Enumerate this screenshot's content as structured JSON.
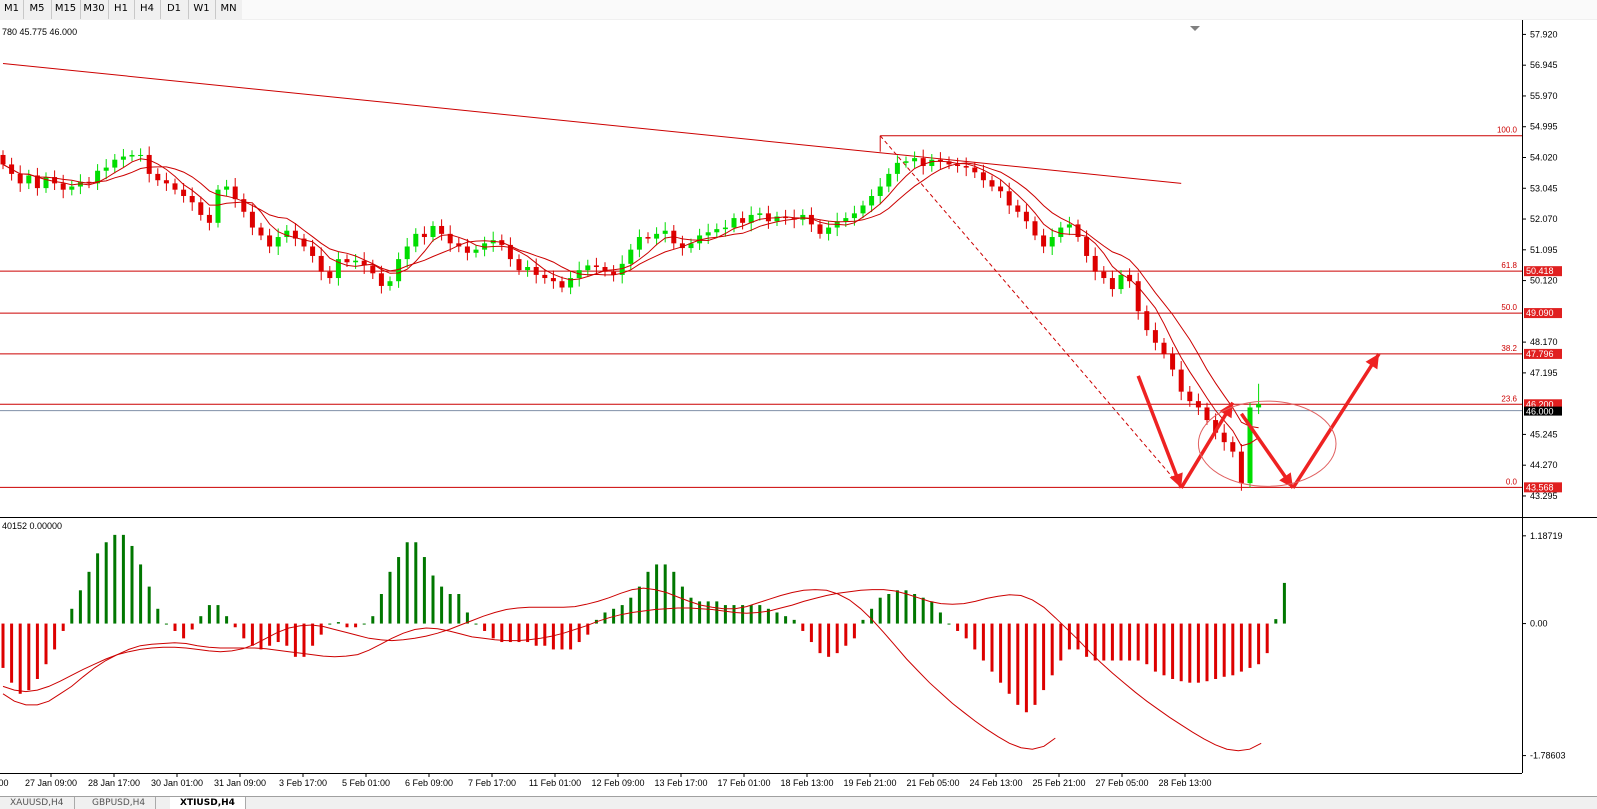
{
  "timeframes": [
    {
      "label": "M1",
      "active": false
    },
    {
      "label": "M5",
      "active": false
    },
    {
      "label": "M15",
      "active": false
    },
    {
      "label": "M30",
      "active": false
    },
    {
      "label": "H1",
      "active": false
    },
    {
      "label": "H4",
      "active": false
    },
    {
      "label": "D1",
      "active": false
    },
    {
      "label": "W1",
      "active": false
    },
    {
      "label": "MN",
      "active": false
    }
  ],
  "symbol_tabs": [
    {
      "label": "XAUUSD,H4",
      "active": false
    },
    {
      "label": "GBPUSD,H4",
      "active": false
    },
    {
      "label": "XTIUSD,H4",
      "active": true
    }
  ],
  "colors": {
    "bull": "#00dd00",
    "bear": "#dd0000",
    "line": "#cc0000",
    "hist_up": "#007700",
    "hist_down": "#dd0000",
    "arrow": "#ee2222"
  },
  "chart_data": [
    {
      "type": "candlestick",
      "title": "",
      "info_text": "780 45.775 46.000",
      "price_axis": {
        "range": [
          42.85,
          58.25
        ],
        "ticks": [
          "57.920",
          "56.945",
          "55.970",
          "54.995",
          "54.020",
          "53.045",
          "52.070",
          "51.095",
          "50.120",
          "48.170",
          "47.195",
          "45.245",
          "44.270",
          "43.295"
        ]
      },
      "time_axis_labels": [
        "27 Jan 09:00",
        "28 Jan 17:00",
        "30 Jan 01:00",
        "31 Jan 09:00",
        "3 Feb 17:00",
        "5 Feb 01:00",
        "6 Feb 09:00",
        "7 Feb 17:00",
        "11 Feb 01:00",
        "12 Feb 09:00",
        "13 Feb 17:00",
        "17 Feb 01:00",
        "18 Feb 13:00",
        "19 Feb 21:00",
        "21 Feb 05:00",
        "24 Feb 13:00",
        "25 Feb 21:00",
        "27 Feb 05:00",
        "28 Feb 13:00"
      ],
      "time_axis_cut_label": ":00",
      "fibonacci": [
        {
          "level": "100.0",
          "price": 54.71,
          "label": ""
        },
        {
          "level": "61.8",
          "price": 50.418,
          "label": "50.418"
        },
        {
          "level": "50.0",
          "price": 49.09,
          "label": "49.090"
        },
        {
          "level": "38.2",
          "price": 47.796,
          "label": "47.796"
        },
        {
          "level": "23.6",
          "price": 46.2,
          "label": "46.200"
        },
        {
          "level": "0.0",
          "price": 43.568,
          "label": "43.568"
        }
      ],
      "current_price": {
        "price": 46.0,
        "label": "46.000"
      },
      "trendline": [
        [
          0,
          57.0
        ],
        [
          137,
          53.2
        ]
      ],
      "projection_arrows": [
        [
          [
            132,
            47.1
          ],
          [
            137,
            43.55
          ]
        ],
        [
          [
            137,
            43.55
          ],
          [
            143,
            46.25
          ]
        ],
        [
          [
            144,
            45.9
          ],
          [
            150,
            43.55
          ]
        ],
        [
          [
            150,
            43.55
          ],
          [
            160,
            47.8
          ]
        ]
      ],
      "projection_ellipse": {
        "center": [
          147,
          44.95
        ],
        "rx_bars": 8,
        "ry_price": 1.35
      },
      "close": [
        53.8,
        53.5,
        53.2,
        53.45,
        53.05,
        53.4,
        53.2,
        53.0,
        53.1,
        53.25,
        53.2,
        53.6,
        53.7,
        53.95,
        54.05,
        54.1,
        54.1,
        53.5,
        53.3,
        53.2,
        53.0,
        52.8,
        52.6,
        52.2,
        51.95,
        53.0,
        53.1,
        52.7,
        52.3,
        51.8,
        51.55,
        51.2,
        51.5,
        51.7,
        51.45,
        51.2,
        50.9,
        50.4,
        50.2,
        50.8,
        50.7,
        50.75,
        50.6,
        50.35,
        49.95,
        50.1,
        50.8,
        51.2,
        51.6,
        51.5,
        51.85,
        51.6,
        51.3,
        51.2,
        51.0,
        51.1,
        51.3,
        51.4,
        51.25,
        50.8,
        50.45,
        50.55,
        50.3,
        50.2,
        50.1,
        49.9,
        50.2,
        50.45,
        50.6,
        50.55,
        50.4,
        50.3,
        50.65,
        51.1,
        51.5,
        51.45,
        51.6,
        51.7,
        51.3,
        51.15,
        51.3,
        51.55,
        51.65,
        51.75,
        51.8,
        52.1,
        51.95,
        52.2,
        52.25,
        52.0,
        52.15,
        52.1,
        52.05,
        52.2,
        51.9,
        51.6,
        51.8,
        52.0,
        52.1,
        52.25,
        52.5,
        52.8,
        53.1,
        53.5,
        53.85,
        53.9,
        54.0,
        53.75,
        53.95,
        53.9,
        53.8,
        53.75,
        53.7,
        53.55,
        53.3,
        53.1,
        52.95,
        52.5,
        52.3,
        52.0,
        51.55,
        51.2,
        51.5,
        51.8,
        51.9,
        51.5,
        50.9,
        50.4,
        50.2,
        49.85,
        50.3,
        50.1,
        49.15,
        48.55,
        48.15,
        47.8,
        47.3,
        46.6,
        46.3,
        46.1,
        45.7,
        45.3,
        45.0,
        44.7,
        43.7,
        46.1,
        46.2
      ]
    },
    {
      "type": "macd",
      "header_text": "40152 0.00000",
      "range": [
        -1.9,
        1.32
      ],
      "ticks": [
        "1.18719",
        "0.00",
        "-1.78603"
      ],
      "histogram": [
        -0.6,
        -0.8,
        -0.95,
        -0.9,
        -0.75,
        -0.55,
        -0.35,
        -0.1,
        0.2,
        0.45,
        0.7,
        0.95,
        1.1,
        1.2,
        1.2,
        1.05,
        0.8,
        0.5,
        0.2,
        0.0,
        -0.1,
        -0.2,
        -0.08,
        0.1,
        0.25,
        0.25,
        0.1,
        -0.05,
        -0.2,
        -0.3,
        -0.35,
        -0.3,
        -0.25,
        -0.3,
        -0.45,
        -0.45,
        -0.3,
        -0.15,
        0.0,
        0.02,
        -0.05,
        -0.05,
        0.0,
        0.1,
        0.4,
        0.7,
        0.9,
        1.1,
        1.1,
        0.9,
        0.65,
        0.5,
        0.4,
        0.4,
        0.15,
        0.0,
        -0.1,
        -0.2,
        -0.25,
        -0.25,
        -0.25,
        -0.25,
        -0.3,
        -0.3,
        -0.35,
        -0.35,
        -0.35,
        -0.25,
        -0.15,
        0.05,
        0.15,
        0.2,
        0.25,
        0.35,
        0.5,
        0.7,
        0.8,
        0.8,
        0.7,
        0.5,
        0.35,
        0.3,
        0.3,
        0.3,
        0.25,
        0.25,
        0.25,
        0.25,
        0.25,
        0.2,
        0.15,
        0.1,
        0.05,
        -0.1,
        -0.25,
        -0.4,
        -0.45,
        -0.4,
        -0.3,
        -0.2,
        0.05,
        0.2,
        0.35,
        0.4,
        0.45,
        0.45,
        0.4,
        0.35,
        0.3,
        0.15,
        0.0,
        -0.1,
        -0.2,
        -0.35,
        -0.5,
        -0.65,
        -0.8,
        -0.95,
        -1.1,
        -1.2,
        -1.1,
        -0.9,
        -0.7,
        -0.5,
        -0.35,
        -0.35,
        -0.45,
        -0.5,
        -0.5,
        -0.5,
        -0.5,
        -0.5,
        -0.5,
        -0.55,
        -0.65,
        -0.7,
        -0.75,
        -0.78,
        -0.8,
        -0.8,
        -0.78,
        -0.75,
        -0.72,
        -0.7,
        -0.65,
        -0.6,
        -0.55,
        -0.4,
        0.06,
        0.55
      ],
      "signal_line": [
        -0.95,
        -1.05,
        -1.1,
        -1.1,
        -1.05,
        -0.95,
        -0.85,
        -0.72,
        -0.6,
        -0.5,
        -0.42,
        -0.35,
        -0.3,
        -0.28,
        -0.27,
        -0.26,
        -0.27,
        -0.3,
        -0.32,
        -0.33,
        -0.33,
        -0.33,
        -0.33,
        -0.34,
        -0.36,
        -0.38,
        -0.4,
        -0.42,
        -0.44,
        -0.45,
        -0.44,
        -0.42,
        -0.36,
        -0.28,
        -0.2,
        -0.13,
        -0.08,
        -0.06,
        -0.07,
        -0.1,
        -0.14,
        -0.18,
        -0.2,
        -0.22,
        -0.23,
        -0.23,
        -0.22,
        -0.2,
        -0.17,
        -0.13,
        -0.08,
        -0.03,
        0.03,
        0.08,
        0.12,
        0.15,
        0.17,
        0.19,
        0.2,
        0.21,
        0.21,
        0.2,
        0.19,
        0.17,
        0.15,
        0.14,
        0.15,
        0.17,
        0.21,
        0.25,
        0.3,
        0.34,
        0.38,
        0.41,
        0.43,
        0.45,
        0.46,
        0.46,
        0.44,
        0.4,
        0.35,
        0.3,
        0.27,
        0.26,
        0.27,
        0.3,
        0.34,
        0.37,
        0.39,
        0.38,
        0.32,
        0.22,
        0.08,
        -0.07,
        -0.22,
        -0.38,
        -0.53,
        -0.67,
        -0.8,
        -0.93,
        -1.05,
        -1.16,
        -1.27,
        -1.37,
        -1.47,
        -1.56,
        -1.64,
        -1.7,
        -1.72,
        -1.7,
        -1.62
      ],
      "macd_line": [
        -0.85,
        -0.9,
        -0.92,
        -0.9,
        -0.85,
        -0.78,
        -0.7,
        -0.62,
        -0.55,
        -0.48,
        -0.42,
        -0.38,
        -0.35,
        -0.33,
        -0.32,
        -0.32,
        -0.33,
        -0.35,
        -0.37,
        -0.38,
        -0.37,
        -0.34,
        -0.28,
        -0.2,
        -0.12,
        -0.06,
        -0.03,
        -0.02,
        -0.04,
        -0.08,
        -0.12,
        -0.16,
        -0.2,
        -0.22,
        -0.23,
        -0.22,
        -0.2,
        -0.17,
        -0.13,
        -0.08,
        -0.02,
        0.04,
        0.1,
        0.15,
        0.19,
        0.21,
        0.22,
        0.22,
        0.22,
        0.22,
        0.23,
        0.26,
        0.3,
        0.35,
        0.41,
        0.46,
        0.48,
        0.46,
        0.42,
        0.36,
        0.3,
        0.25,
        0.22,
        0.2,
        0.2,
        0.23,
        0.28,
        0.33,
        0.38,
        0.42,
        0.45,
        0.46,
        0.45,
        0.4,
        0.32,
        0.2,
        0.05,
        -0.12,
        -0.3,
        -0.48,
        -0.64,
        -0.8,
        -0.94,
        -1.08,
        -1.2,
        -1.32,
        -1.43,
        -1.53,
        -1.62,
        -1.68,
        -1.7,
        -1.66,
        -1.55
      ]
    }
  ]
}
